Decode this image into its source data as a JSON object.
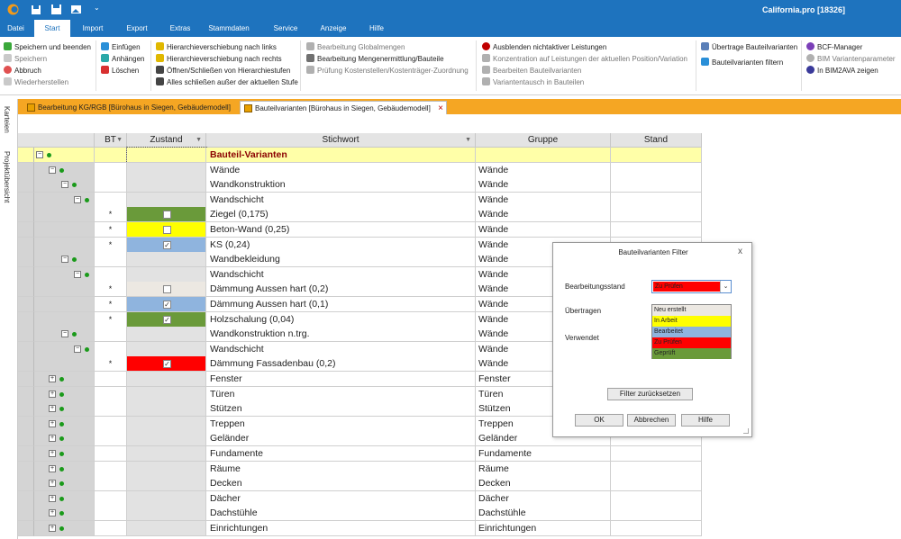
{
  "app": {
    "title": "California.pro [18326]"
  },
  "menu": {
    "tabs": [
      "Datei",
      "Start",
      "Import",
      "Export",
      "Extras",
      "Stammdaten",
      "Service",
      "Anzeige",
      "Hilfe"
    ],
    "active": "Start"
  },
  "ribbon": {
    "group1": [
      "Speichern und beenden",
      "Speichern",
      "Abbruch",
      "Wiederherstellen"
    ],
    "group2": [
      "Einfügen",
      "Anhängen",
      "Löschen"
    ],
    "group3": [
      "Hierarchieverschiebung nach links",
      "Hierarchieverschiebung nach rechts",
      "Öffnen/Schließen von Hierarchiestufen",
      "Alles schließen außer der aktuellen Stufe"
    ],
    "group4": [
      "Bearbeitung Globalmengen",
      "Bearbeitung Mengenermittlung/Bauteile",
      "Prüfung Kostenstellen/Kostenträger-Zuordnung"
    ],
    "group5": [
      "Ausblenden nichtaktiver Leistungen",
      "Konzentration auf Leistungen der aktuellen Position/Variation",
      "Bearbeiten Bauteilvarianten",
      "Variantentausch in Bauteilen"
    ],
    "group6": [
      "Übertrage Bauteilvarianten",
      "Bauteilvarianten filtern"
    ],
    "group7": [
      "BCF-Manager",
      "BIM Variantenparameter",
      "In BIM2AVA zeigen"
    ]
  },
  "side_tabs": [
    "Karteien",
    "Projektübersicht"
  ],
  "doc_tabs": [
    "Bearbeitung KG/RGB [Bürohaus in Siegen, Gebäudemodell]",
    "Bauteilvarianten [Bürohaus in Siegen, Gebäudemodell]"
  ],
  "doc_tab_close": "×",
  "grid": {
    "headers": {
      "bt": "BT",
      "zustand": "Zustand",
      "stichwort": "Stichwort",
      "gruppe": "Gruppe",
      "stand": "Stand"
    },
    "rows": [
      {
        "stichwort": "Bauteil-Varianten",
        "gruppe": "",
        "bt": "",
        "level": 0,
        "toggle": "−",
        "status": null,
        "checked": null,
        "group": true
      },
      {
        "stichwort": "Wände",
        "gruppe": "Wände",
        "bt": "",
        "level": 1,
        "toggle": "−",
        "status": null,
        "checked": null
      },
      {
        "stichwort": "Wandkonstruktion",
        "gruppe": "Wände",
        "bt": "",
        "level": 2,
        "toggle": "−",
        "status": null,
        "checked": null
      },
      {
        "stichwort": "Wandschicht",
        "gruppe": "Wände",
        "bt": "",
        "level": 3,
        "toggle": "−",
        "status": null,
        "checked": null
      },
      {
        "stichwort": "Ziegel (0,175)",
        "gruppe": "Wände",
        "bt": "*",
        "level": 4,
        "toggle": null,
        "status": "#6a9a3a",
        "checked": false
      },
      {
        "stichwort": "Beton-Wand (0,25)",
        "gruppe": "Wände",
        "bt": "*",
        "level": 4,
        "toggle": null,
        "status": "#ffff00",
        "checked": false
      },
      {
        "stichwort": "KS (0,24)",
        "gruppe": "Wände",
        "bt": "*",
        "level": 4,
        "toggle": null,
        "status": "#8fb4de",
        "checked": true
      },
      {
        "stichwort": "Wandbekleidung",
        "gruppe": "Wände",
        "bt": "",
        "level": 2,
        "toggle": "−",
        "status": null,
        "checked": null
      },
      {
        "stichwort": "Wandschicht",
        "gruppe": "Wände",
        "bt": "",
        "level": 3,
        "toggle": "−",
        "status": null,
        "checked": null
      },
      {
        "stichwort": "Dämmung Aussen hart (0,2)",
        "gruppe": "Wände",
        "bt": "*",
        "level": 4,
        "toggle": null,
        "status": "#ece8e2",
        "checked": false
      },
      {
        "stichwort": "Dämmung Aussen hart (0,1)",
        "gruppe": "Wände",
        "bt": "*",
        "level": 4,
        "toggle": null,
        "status": "#8fb4de",
        "checked": true
      },
      {
        "stichwort": "Holzschalung (0,04)",
        "gruppe": "Wände",
        "bt": "*",
        "level": 4,
        "toggle": null,
        "status": "#6a9a3a",
        "checked": true
      },
      {
        "stichwort": "Wandkonstruktion n.trg.",
        "gruppe": "Wände",
        "bt": "",
        "level": 2,
        "toggle": "−",
        "status": null,
        "checked": null
      },
      {
        "stichwort": "Wandschicht",
        "gruppe": "Wände",
        "bt": "",
        "level": 3,
        "toggle": "−",
        "status": null,
        "checked": null
      },
      {
        "stichwort": "Dämmung Fassadenbau (0,2)",
        "gruppe": "Wände",
        "bt": "*",
        "level": 4,
        "toggle": null,
        "status": "#ff0000",
        "checked": true
      },
      {
        "stichwort": "Fenster",
        "gruppe": "Fenster",
        "bt": "",
        "level": 1,
        "toggle": "+",
        "status": null,
        "checked": null
      },
      {
        "stichwort": "Türen",
        "gruppe": "Türen",
        "bt": "",
        "level": 1,
        "toggle": "+",
        "status": null,
        "checked": null
      },
      {
        "stichwort": "Stützen",
        "gruppe": "Stützen",
        "bt": "",
        "level": 1,
        "toggle": "+",
        "status": null,
        "checked": null
      },
      {
        "stichwort": "Treppen",
        "gruppe": "Treppen",
        "bt": "",
        "level": 1,
        "toggle": "+",
        "status": null,
        "checked": null
      },
      {
        "stichwort": "Geländer",
        "gruppe": "Geländer",
        "bt": "",
        "level": 1,
        "toggle": "+",
        "status": null,
        "checked": null
      },
      {
        "stichwort": "Fundamente",
        "gruppe": "Fundamente",
        "bt": "",
        "level": 1,
        "toggle": "+",
        "status": null,
        "checked": null
      },
      {
        "stichwort": "Räume",
        "gruppe": "Räume",
        "bt": "",
        "level": 1,
        "toggle": "+",
        "status": null,
        "checked": null
      },
      {
        "stichwort": "Decken",
        "gruppe": "Decken",
        "bt": "",
        "level": 1,
        "toggle": "+",
        "status": null,
        "checked": null
      },
      {
        "stichwort": "Dächer",
        "gruppe": "Dächer",
        "bt": "",
        "level": 1,
        "toggle": "+",
        "status": null,
        "checked": null
      },
      {
        "stichwort": "Dachstühle",
        "gruppe": "Dachstühle",
        "bt": "",
        "level": 1,
        "toggle": "+",
        "status": null,
        "checked": null
      },
      {
        "stichwort": "Einrichtungen",
        "gruppe": "Einrichtungen",
        "bt": "",
        "level": 1,
        "toggle": "+",
        "status": null,
        "checked": null
      }
    ]
  },
  "dialog": {
    "title": "Bauteilvarianten Filter",
    "close": "x",
    "labels": {
      "bearbeitungsstand": "Bearbeitungsstand",
      "uebertragen": "Übertragen",
      "verwendet": "Verwendet"
    },
    "select_value": "Zu Prüfen",
    "select_color": "#ff0000",
    "select_arrow": "⌄",
    "options": [
      {
        "label": "Neu erstellt",
        "color": "#ece8e2"
      },
      {
        "label": "In Arbeit",
        "color": "#ffff00"
      },
      {
        "label": "Bearbeitet",
        "color": "#8fb4de"
      },
      {
        "label": "Zu Prüfen",
        "color": "#ff0000"
      },
      {
        "label": "Geprüft",
        "color": "#6a9a3a"
      }
    ],
    "buttons": {
      "reset": "Filter zurücksetzen",
      "ok": "OK",
      "cancel": "Abbrechen",
      "help": "Hilfe"
    }
  },
  "colors": {
    "accent": "#1e73be",
    "tab_bar": "#f5a623",
    "group_row": "#ffffa8"
  }
}
